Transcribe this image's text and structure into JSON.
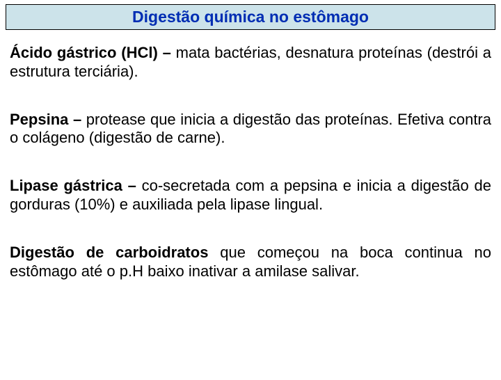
{
  "slide": {
    "title": "Digestão química no estômago",
    "title_color": "#002db3",
    "title_bg": "#cce3ea",
    "title_fontsize": 23,
    "body_fontsize": 22,
    "body_color": "#000000",
    "background_color": "#ffffff",
    "paragraphs": [
      {
        "lead": "Ácido gástrico (HCl) –",
        "rest": " mata bactérias, desnatura proteínas (destrói a estrutura terciária)."
      },
      {
        "lead": "Pepsina –",
        "rest": " protease que inicia a digestão das proteínas. Efetiva contra o colágeno (digestão de carne)."
      },
      {
        "lead": "Lipase gástrica –",
        "rest": " co-secretada com a pepsina e inicia a digestão de gorduras (10%) e auxiliada pela lipase lingual."
      },
      {
        "lead": "Digestão de carboidratos",
        "rest": " que começou na boca continua no estômago até o p.H baixo inativar a amilase salivar."
      }
    ]
  }
}
